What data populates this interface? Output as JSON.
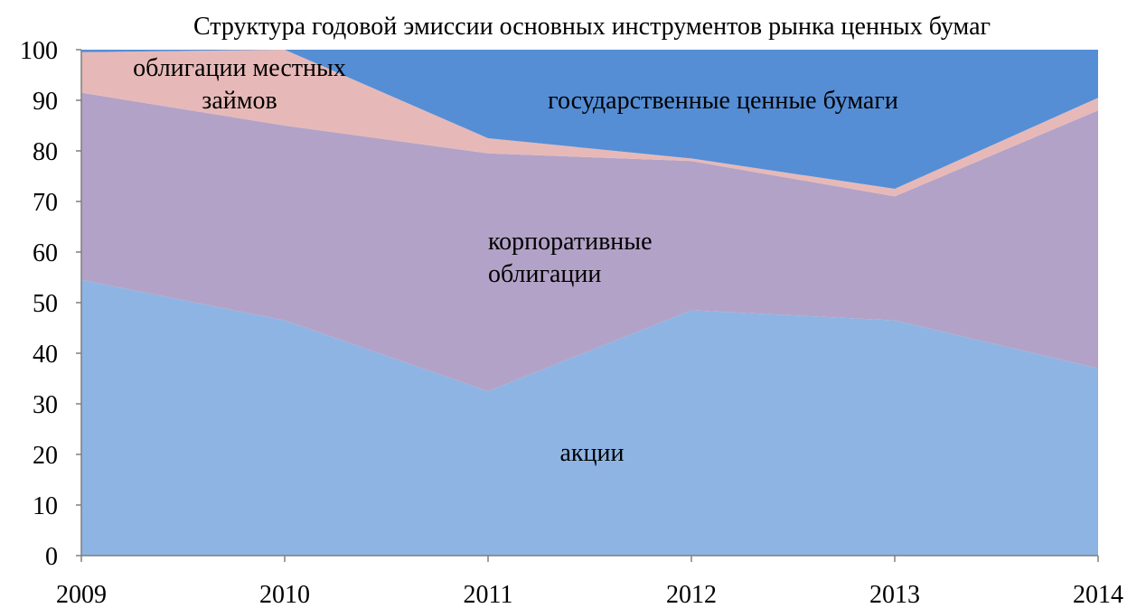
{
  "chart_data": {
    "type": "stacked_area",
    "title": "Структура годовой эмиссии основных инструментов рынка ценных бумаг",
    "categories": [
      "2009",
      "2010",
      "2011",
      "2012",
      "2013",
      "2014"
    ],
    "series": [
      {
        "name": "акции",
        "color": "#8eb4e3",
        "values": [
          54.5,
          46.5,
          32.5,
          48.5,
          46.5,
          37
        ]
      },
      {
        "name": "корпоративные облигации",
        "color": "#b3a2c7",
        "values": [
          37,
          38.5,
          47,
          29.5,
          24.5,
          51
        ]
      },
      {
        "name": "облигации местных займов",
        "color": "#e6b9b8",
        "values": [
          8,
          15,
          3,
          0.5,
          1.5,
          2.5
        ]
      },
      {
        "name": "государственные ценные бумаги",
        "color": "#558ed5",
        "values": [
          0.5,
          0,
          17.5,
          21.5,
          27.5,
          9.5
        ]
      }
    ],
    "ylim": [
      0,
      100
    ],
    "yticks": [
      0,
      10,
      20,
      30,
      40,
      50,
      60,
      70,
      80,
      90,
      100
    ]
  }
}
